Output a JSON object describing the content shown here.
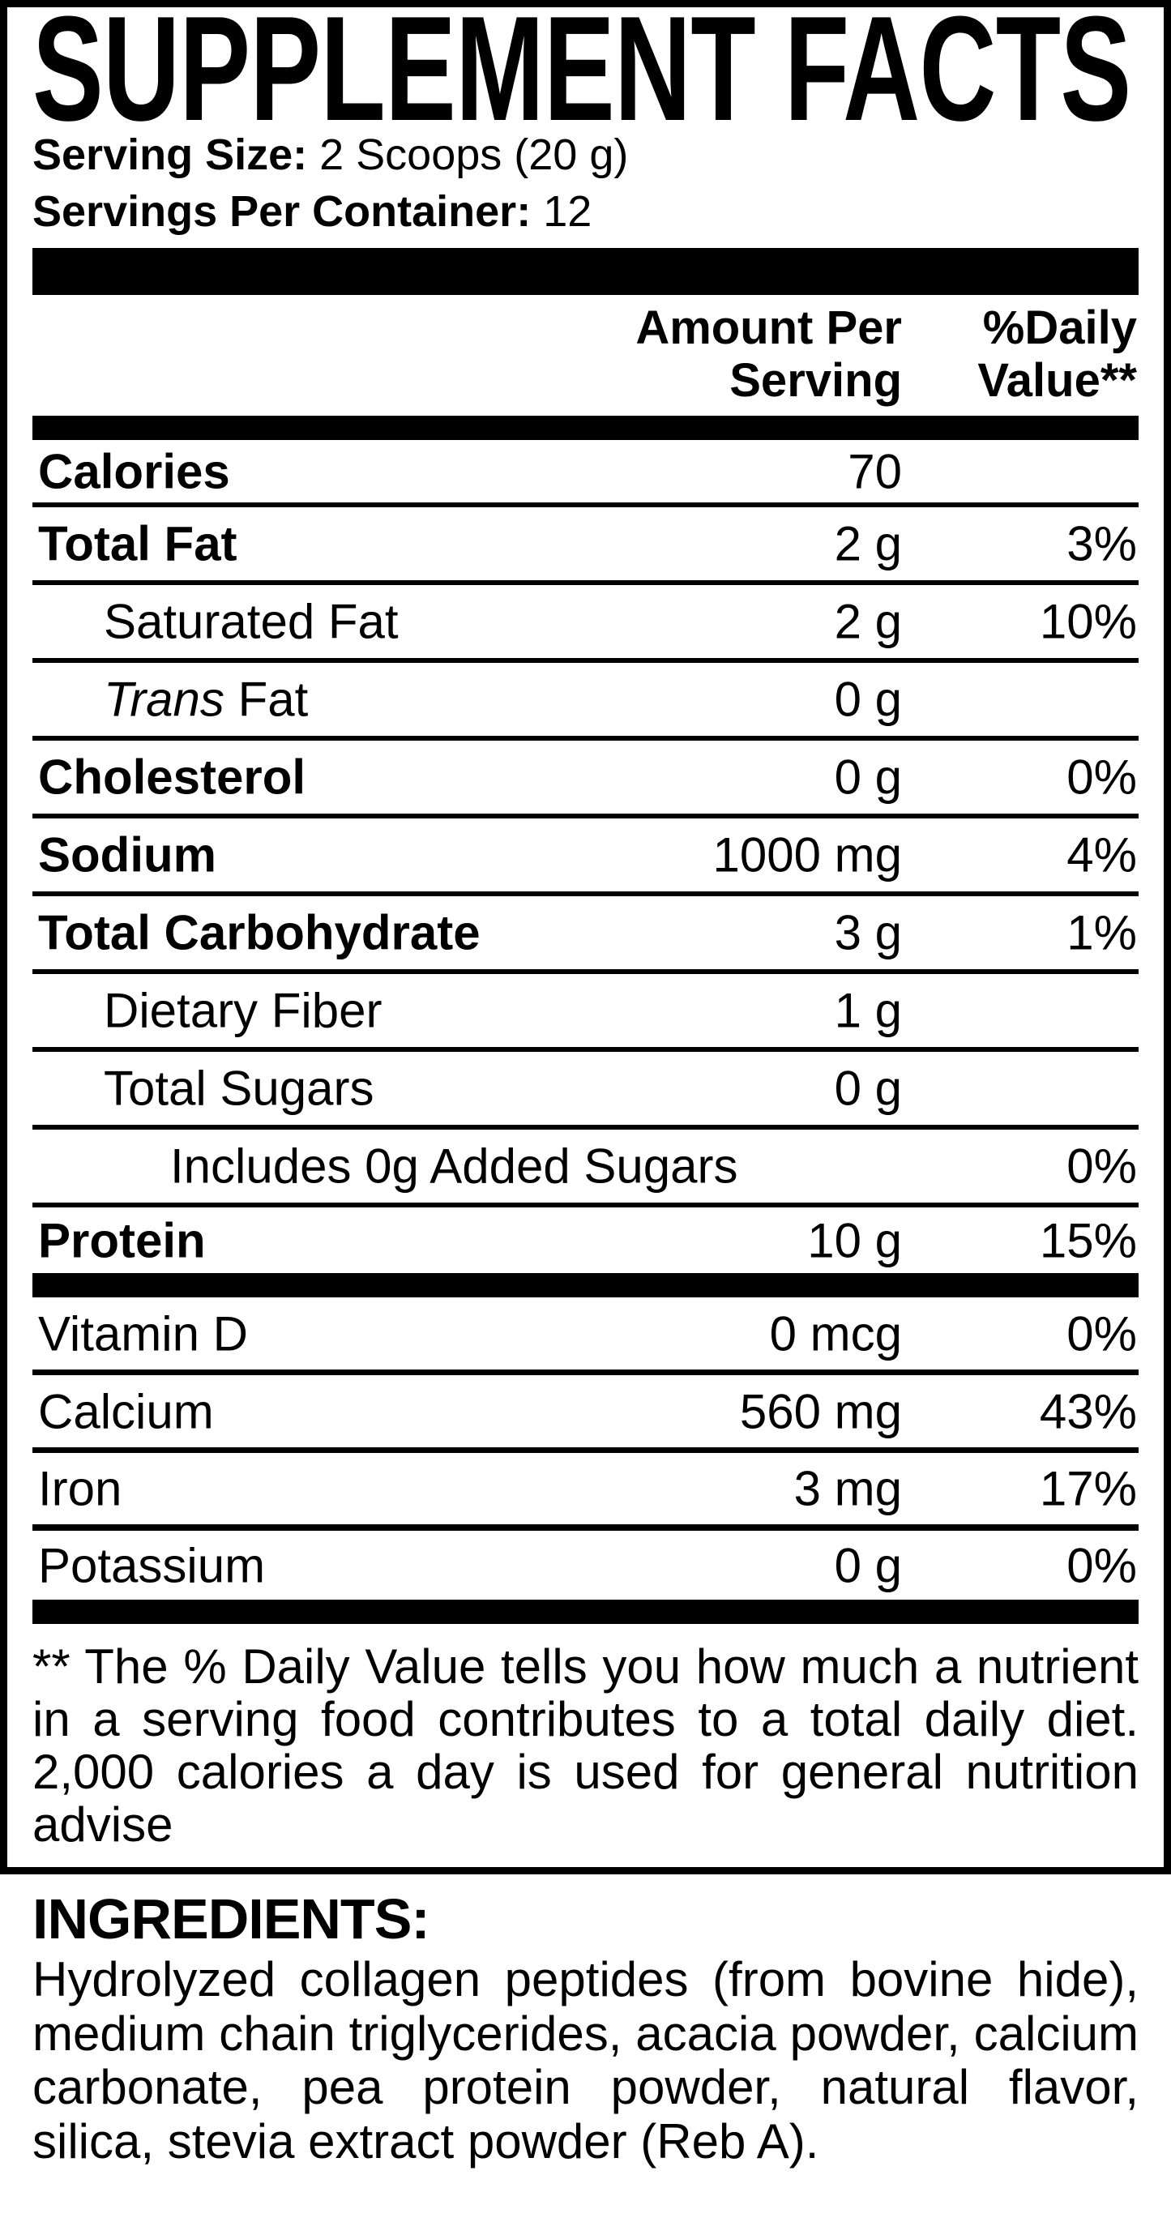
{
  "title": "SUPPLEMENT FACTS",
  "serving_size": {
    "label": "Serving Size:",
    "value": "2 Scoops (20 g)"
  },
  "servings_per_container": {
    "label": "Servings Per Container:",
    "value": "12"
  },
  "header": {
    "amount_line1": "Amount Per",
    "amount_line2": "Serving",
    "dv_line1": "%Daily",
    "dv_line2": "Value**"
  },
  "nutrients": [
    {
      "label": "Calories",
      "amount": "70",
      "dv": ""
    },
    {
      "label": "Total Fat",
      "amount": "2 g",
      "dv": "3%"
    },
    {
      "label": "Saturated Fat",
      "amount": "2 g",
      "dv": "10%"
    },
    {
      "label_italic": "Trans",
      "label": " Fat",
      "amount": "0 g",
      "dv": ""
    },
    {
      "label": "Cholesterol",
      "amount": "0 g",
      "dv": "0%"
    },
    {
      "label": "Sodium",
      "amount": "1000 mg",
      "dv": "4%"
    },
    {
      "label": "Total Carbohydrate",
      "amount": "3 g",
      "dv": "1%"
    },
    {
      "label": "Dietary Fiber",
      "amount": "1 g",
      "dv": ""
    },
    {
      "label": "Total Sugars",
      "amount": "0 g",
      "dv": ""
    },
    {
      "label": "Includes 0g Added Sugars",
      "amount": "",
      "dv": "0%"
    },
    {
      "label": "Protein",
      "amount": "10 g",
      "dv": "15%"
    }
  ],
  "vitamins": [
    {
      "label": "Vitamin D",
      "amount": "0 mcg",
      "dv": "0%"
    },
    {
      "label": "Calcium",
      "amount": "560 mg",
      "dv": "43%"
    },
    {
      "label": "Iron",
      "amount": "3 mg",
      "dv": "17%"
    },
    {
      "label": "Potassium",
      "amount": "0 g",
      "dv": "0%"
    }
  ],
  "footnote": "** The % Daily Value tells you how much a nutrient in a serving food contributes to a total daily diet. 2,000 calories a day is used for general nutrition advise",
  "ingredients": {
    "heading": "INGREDIENTS:",
    "text": "Hydrolyzed collagen peptides (from bovine hide), medium chain triglycerides, acacia powder, calcium carbonate, pea protein powder, natural flavor, silica, stevia extract powder (Reb A)."
  }
}
